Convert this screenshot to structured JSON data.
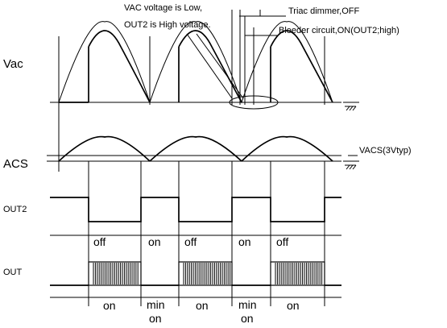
{
  "annotations": {
    "vac_low_line1": "VAC voltage is Low,",
    "vac_low_line2": "OUT2 is High voltage.",
    "triac": "Triac dimmer,OFF",
    "bleeder": "Bleeder circuit,ON(OUT2;high)",
    "vacs": "VACS(3Vtyp)"
  },
  "signals": {
    "vac": "Vac",
    "acs": "ACS",
    "out2": "OUT2",
    "out": "OUT"
  },
  "out2_states": [
    "off",
    "on",
    "off",
    "on",
    "off"
  ],
  "out_states": [
    {
      "line1": "on",
      "line2": ""
    },
    {
      "line1": "min",
      "line2": "on"
    },
    {
      "line1": "on",
      "line2": ""
    },
    {
      "line1": "min",
      "line2": "on"
    },
    {
      "line1": "on",
      "line2": ""
    }
  ]
}
